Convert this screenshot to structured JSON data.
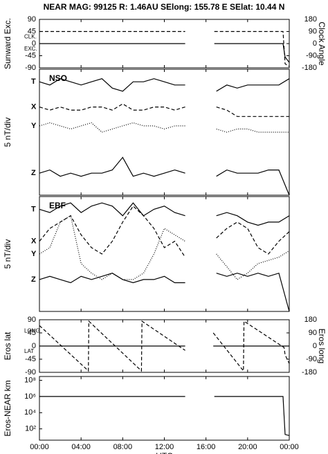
{
  "chart_data": [
    {
      "type": "line",
      "title": "NEAR MAG: 99125  R: 1.46AU  SElong: 155.78 E  SElat:  10.44 N",
      "ylabel": "Sunward Exc.",
      "y2label": "Clock Angle",
      "ylim": [
        -90,
        90
      ],
      "yticks": [
        90,
        45,
        0,
        -45,
        -90
      ],
      "y2lim": [
        -180,
        180
      ],
      "y2ticks": [
        180,
        90,
        0,
        -90,
        -180
      ],
      "x": [
        0,
        14,
        15,
        16.8,
        23.4,
        23.6,
        24
      ],
      "series": [
        {
          "name": "CLK.",
          "color": "#000000",
          "dash": "dashed",
          "axis": "y2",
          "values": [
            90,
            90,
            null,
            90,
            90,
            -150,
            -170
          ]
        },
        {
          "name": "EXC.",
          "color": "#000000",
          "dash": "solid",
          "values": [
            0,
            0,
            null,
            0,
            0,
            -50,
            -70
          ]
        }
      ]
    },
    {
      "type": "line",
      "ylabel": "5 nT/div",
      "panel_label": "NSO",
      "ylim": [
        0,
        40
      ],
      "x": [
        0,
        1,
        2,
        3,
        4,
        5,
        6,
        7,
        8,
        9,
        10,
        11,
        12,
        13,
        14,
        15,
        17,
        18,
        19,
        20,
        21,
        22,
        23,
        24
      ],
      "series": [
        {
          "name": "T",
          "color": "#000000",
          "dash": "solid",
          "values": [
            36,
            35,
            37,
            36,
            35,
            36,
            37,
            34,
            33,
            36,
            36,
            37,
            36,
            35,
            35,
            null,
            33,
            35,
            34,
            35,
            35,
            35,
            35,
            37
          ]
        },
        {
          "name": "X",
          "color": "#000000",
          "dash": "dashed",
          "values": [
            28,
            27,
            28,
            27,
            27,
            28,
            28,
            27,
            29,
            27,
            27,
            28,
            28,
            27,
            28,
            null,
            28,
            27,
            25,
            25,
            25,
            25,
            25,
            25
          ]
        },
        {
          "name": "Y",
          "color": "#000000",
          "dash": "dotted",
          "values": [
            22,
            23,
            22,
            21,
            22,
            23,
            20,
            21,
            22,
            23,
            22,
            22,
            21,
            22,
            22,
            null,
            21,
            20,
            21,
            21,
            20,
            20,
            20,
            20
          ]
        },
        {
          "name": "Z",
          "color": "#000000",
          "dash": "solid",
          "values": [
            7,
            8,
            6,
            7,
            6,
            7,
            7,
            8,
            12,
            6,
            7,
            6,
            7,
            8,
            7,
            null,
            6,
            8,
            7,
            7,
            7,
            8,
            8,
            0
          ]
        }
      ]
    },
    {
      "type": "line",
      "ylabel": "5 nT/div",
      "panel_label": "EBF",
      "ylim": [
        0,
        36
      ],
      "x": [
        0,
        1,
        2,
        3,
        4,
        5,
        6,
        7,
        8,
        9,
        10,
        11,
        12,
        13,
        14,
        15,
        17,
        18,
        19,
        20,
        21,
        22,
        23,
        24
      ],
      "series": [
        {
          "name": "T",
          "color": "#000000",
          "dash": "solid",
          "values": [
            32,
            31,
            33,
            34,
            31,
            33,
            34,
            33,
            30,
            34,
            30,
            32,
            33,
            31,
            30,
            null,
            30,
            31,
            30,
            28,
            27,
            28,
            28,
            30
          ]
        },
        {
          "name": "X",
          "color": "#000000",
          "dash": "dashed",
          "values": [
            22,
            26,
            28,
            30,
            24,
            20,
            18,
            22,
            28,
            33,
            30,
            26,
            20,
            22,
            17,
            null,
            23,
            26,
            28,
            26,
            20,
            18,
            22,
            25
          ]
        },
        {
          "name": "Y",
          "color": "#000000",
          "dash": "dotted",
          "values": [
            18,
            20,
            28,
            30,
            15,
            12,
            10,
            12,
            10,
            10,
            12,
            18,
            26,
            24,
            22,
            null,
            18,
            14,
            10,
            12,
            15,
            16,
            17,
            19
          ]
        },
        {
          "name": "Z",
          "color": "#000000",
          "dash": "solid",
          "values": [
            10,
            11,
            10,
            9,
            11,
            10,
            11,
            12,
            10,
            9,
            10,
            10,
            11,
            9,
            9,
            null,
            12,
            11,
            12,
            11,
            12,
            11,
            12,
            0
          ]
        }
      ]
    },
    {
      "type": "line",
      "ylabel": "Eros lat",
      "y2label": "Eros long",
      "ylim": [
        -90,
        90
      ],
      "yticks": [
        90,
        45,
        0,
        -45,
        -90
      ],
      "y2lim": [
        -180,
        180
      ],
      "y2ticks": [
        180,
        90,
        0,
        -90,
        -180
      ],
      "x": [
        0,
        4.7,
        4.75,
        9.8,
        9.85,
        14,
        15,
        16.7,
        19.6,
        19.65,
        23.5,
        23.6,
        24
      ],
      "series": [
        {
          "name": "LONG",
          "color": "#000000",
          "dash": "dashed",
          "axis": "y2",
          "values": [
            140,
            -170,
            170,
            -170,
            170,
            -30,
            null,
            90,
            -170,
            170,
            -10,
            -60,
            -120
          ]
        },
        {
          "name": "LAT",
          "color": "#000000",
          "dash": "solid",
          "values": [
            0,
            0,
            0,
            0,
            0,
            0,
            null,
            0,
            0,
            0,
            0,
            0,
            0
          ]
        }
      ]
    },
    {
      "type": "line",
      "ylabel": "Eros-NEAR km",
      "xlabel": "UTC",
      "log_scale": true,
      "ylim": [
        4,
        300000000
      ],
      "yticks": [
        {
          "value": 100000000,
          "label": "10⁸"
        },
        {
          "value": 1000000,
          "label": "10⁶"
        },
        {
          "value": 10000,
          "label": "10⁴"
        },
        {
          "value": 100,
          "label": "10²"
        }
      ],
      "xlim": [
        0,
        24
      ],
      "xticks": [
        {
          "value": 0,
          "label": "00:00"
        },
        {
          "value": 4,
          "label": "04:00"
        },
        {
          "value": 8,
          "label": "08:00"
        },
        {
          "value": 12,
          "label": "12:00"
        },
        {
          "value": 16,
          "label": "16:00"
        },
        {
          "value": 20,
          "label": "20:00"
        },
        {
          "value": 24,
          "label": "00:00"
        }
      ],
      "x": [
        0,
        14,
        15,
        16.8,
        23.4,
        23.6,
        24
      ],
      "series": [
        {
          "name": "Eros-NEAR",
          "color": "#000000",
          "dash": "solid",
          "values": [
            1000000,
            1000000,
            null,
            1000000,
            1000000,
            20,
            15
          ]
        }
      ]
    }
  ]
}
